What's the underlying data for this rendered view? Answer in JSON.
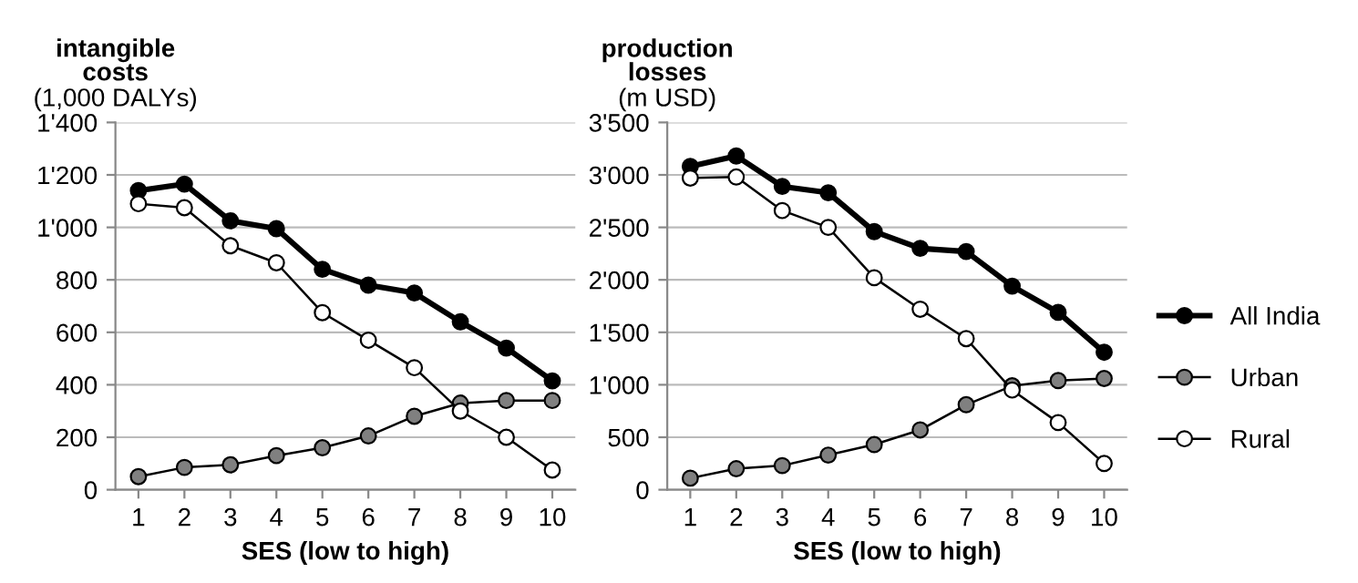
{
  "chart_data": [
    {
      "type": "line",
      "title": "intangible\ncosts",
      "subtitle": "(1,000 DALYs)",
      "xlabel": "SES (low to high)",
      "categories": [
        "1",
        "2",
        "3",
        "4",
        "5",
        "6",
        "7",
        "8",
        "9",
        "10"
      ],
      "ylim": [
        0,
        1400
      ],
      "yticks": [
        0,
        200,
        400,
        600,
        800,
        {
          "value": 1000,
          "label": "1'000"
        },
        {
          "value": 1200,
          "label": "1'200"
        },
        {
          "value": 1400,
          "label": "1'400"
        }
      ],
      "grid": "y",
      "marker": "circle",
      "line_style": "solid",
      "series": [
        {
          "color": "#000000",
          "values": [
            1140,
            1165,
            1025,
            995,
            840,
            780,
            750,
            640,
            540,
            415
          ]
        },
        {
          "color": "#808080",
          "values": [
            50,
            85,
            95,
            130,
            160,
            205,
            280,
            330,
            340,
            340
          ]
        },
        {
          "color": "#ffffff",
          "values": [
            1090,
            1075,
            930,
            865,
            675,
            570,
            465,
            300,
            200,
            75
          ]
        }
      ]
    },
    {
      "type": "line",
      "title": "production\nlosses",
      "subtitle": "(m USD)",
      "xlabel": "SES (low to high)",
      "categories": [
        "1",
        "2",
        "3",
        "4",
        "5",
        "6",
        "7",
        "8",
        "9",
        "10"
      ],
      "ylim": [
        0,
        3500
      ],
      "yticks": [
        0,
        500,
        {
          "value": 1000,
          "label": "1'000"
        },
        {
          "value": 1500,
          "label": "1'500"
        },
        {
          "value": 2000,
          "label": "2'000"
        },
        {
          "value": 2500,
          "label": "2'500"
        },
        {
          "value": 3000,
          "label": "3'000"
        },
        {
          "value": 3500,
          "label": "3'500"
        }
      ],
      "grid": "y",
      "marker": "circle",
      "line_style": "solid",
      "legend": "right",
      "series": [
        {
          "name": "All India",
          "color": "#000000",
          "values": [
            3080,
            3180,
            2890,
            2830,
            2460,
            2300,
            2270,
            1940,
            1690,
            1310
          ]
        },
        {
          "name": "Urban",
          "color": "#808080",
          "values": [
            110,
            200,
            230,
            330,
            430,
            570,
            810,
            990,
            1040,
            1060
          ]
        },
        {
          "name": "Rural",
          "color": "#ffffff",
          "values": [
            2970,
            2980,
            2660,
            2500,
            2020,
            1720,
            1440,
            950,
            640,
            250
          ]
        }
      ]
    }
  ]
}
